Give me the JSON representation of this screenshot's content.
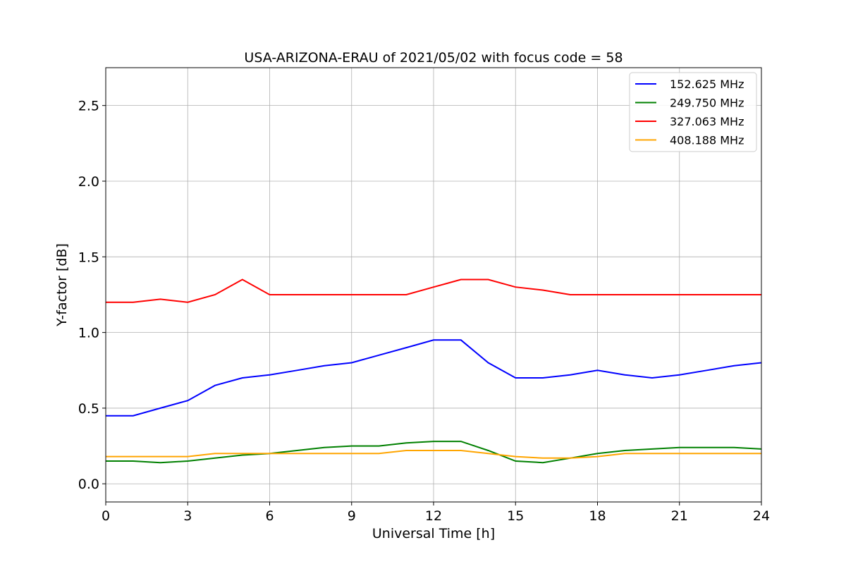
{
  "chart_data": {
    "type": "line",
    "title": "USA-ARIZONA-ERAU of 2021/05/02 with focus code = 58",
    "xlabel": "Universal Time [h]",
    "ylabel": "Y-factor [dB]",
    "xlim": [
      0,
      24
    ],
    "ylim": [
      -0.12,
      2.75
    ],
    "xticks": [
      0,
      3,
      6,
      9,
      12,
      15,
      18,
      21,
      24
    ],
    "xtick_labels": [
      "0",
      "3",
      "6",
      "9",
      "12",
      "15",
      "18",
      "21",
      "24"
    ],
    "yticks": [
      0.0,
      0.5,
      1.0,
      1.5,
      2.0,
      2.5
    ],
    "ytick_labels": [
      "0.0",
      "0.5",
      "1.0",
      "1.5",
      "2.0",
      "2.5"
    ],
    "grid": true,
    "legend_position": "top-right",
    "series": [
      {
        "name": "152.625 MHz",
        "color": "#0000ff",
        "x": [
          0,
          1,
          2,
          3,
          4,
          5,
          6,
          7,
          8,
          9,
          10,
          11,
          12,
          13,
          14,
          15,
          16,
          17,
          18,
          19,
          20,
          21,
          22,
          23,
          24
        ],
        "y": [
          0.45,
          0.45,
          0.5,
          0.55,
          0.65,
          0.7,
          0.72,
          0.75,
          0.78,
          0.8,
          0.85,
          0.9,
          0.95,
          0.95,
          0.8,
          0.7,
          0.7,
          0.72,
          0.75,
          0.72,
          0.7,
          0.72,
          0.75,
          0.78,
          0.8
        ]
      },
      {
        "name": "249.750 MHz",
        "color": "#008000",
        "x": [
          0,
          1,
          2,
          3,
          4,
          5,
          6,
          7,
          8,
          9,
          10,
          11,
          12,
          13,
          14,
          15,
          16,
          17,
          18,
          19,
          20,
          21,
          22,
          23,
          24
        ],
        "y": [
          0.15,
          0.15,
          0.14,
          0.15,
          0.17,
          0.19,
          0.2,
          0.22,
          0.24,
          0.25,
          0.25,
          0.27,
          0.28,
          0.28,
          0.22,
          0.15,
          0.14,
          0.17,
          0.2,
          0.22,
          0.23,
          0.24,
          0.24,
          0.24,
          0.23
        ]
      },
      {
        "name": "327.063 MHz",
        "color": "#ff0000",
        "x": [
          0,
          1,
          2,
          3,
          4,
          5,
          6,
          7,
          8,
          9,
          10,
          11,
          12,
          13,
          14,
          15,
          16,
          17,
          18,
          19,
          20,
          21,
          22,
          23,
          24
        ],
        "y": [
          1.2,
          1.2,
          1.22,
          1.2,
          1.25,
          1.35,
          1.25,
          1.25,
          1.25,
          1.25,
          1.25,
          1.25,
          1.3,
          1.35,
          1.35,
          1.3,
          1.28,
          1.25,
          1.25,
          1.25,
          1.25,
          1.25,
          1.25,
          1.25,
          1.25
        ]
      },
      {
        "name": "408.188 MHz",
        "color": "#ffa500",
        "x": [
          0,
          1,
          2,
          3,
          4,
          5,
          6,
          7,
          8,
          9,
          10,
          11,
          12,
          13,
          14,
          15,
          16,
          17,
          18,
          19,
          20,
          21,
          22,
          23,
          24
        ],
        "y": [
          0.18,
          0.18,
          0.18,
          0.18,
          0.2,
          0.2,
          0.2,
          0.2,
          0.2,
          0.2,
          0.2,
          0.22,
          0.22,
          0.22,
          0.2,
          0.18,
          0.17,
          0.17,
          0.18,
          0.2,
          0.2,
          0.2,
          0.2,
          0.2,
          0.2
        ]
      }
    ]
  }
}
